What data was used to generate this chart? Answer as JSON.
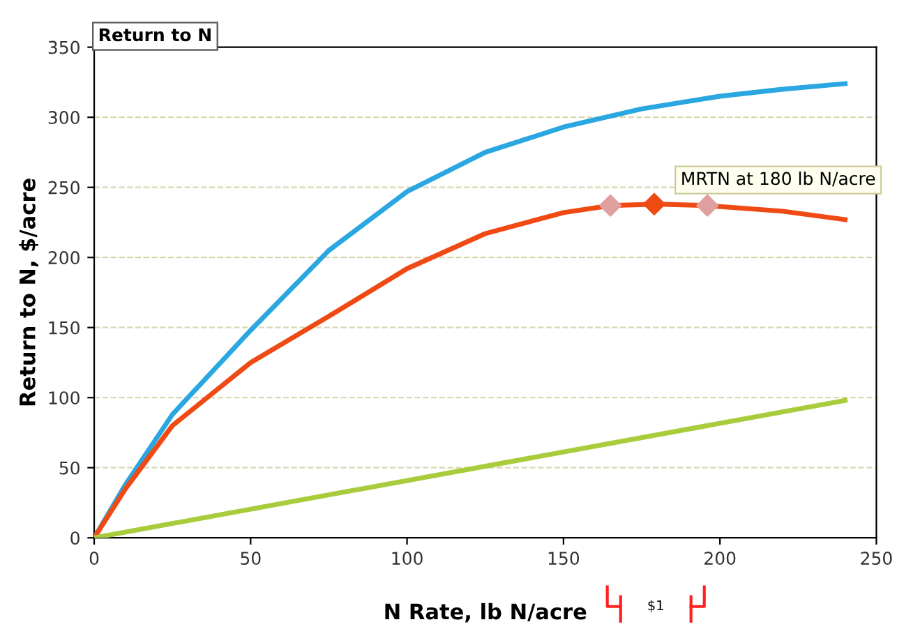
{
  "chart_data": {
    "type": "line",
    "title": "Return to N",
    "xlabel": "N Rate, lb N/acre",
    "ylabel": "Return to N, $/acre",
    "xlim": [
      0,
      250
    ],
    "xticks": [
      0,
      50,
      100,
      150,
      200,
      250
    ],
    "ylim": [
      0,
      350
    ],
    "yticks": [
      0,
      50,
      100,
      150,
      200,
      250,
      300,
      350
    ],
    "grid": "y",
    "legend": false,
    "line_style": "solid",
    "series": [
      {
        "color": "#2aa7e0",
        "x": [
          0,
          10,
          25,
          50,
          75,
          100,
          125,
          150,
          175,
          200,
          220,
          240
        ],
        "values": [
          0,
          38,
          88,
          148,
          205,
          247,
          275,
          293,
          306,
          315,
          320,
          324
        ]
      },
      {
        "color": "#f04a14",
        "x": [
          0,
          10,
          25,
          50,
          75,
          100,
          125,
          150,
          165,
          180,
          196,
          220,
          240
        ],
        "values": [
          0,
          35,
          80,
          125,
          158,
          192,
          217,
          232,
          237,
          238,
          237,
          233,
          227
        ]
      },
      {
        "color": "#a8cc3c",
        "x": [
          0,
          240
        ],
        "values": [
          0,
          98
        ]
      },
      {
        "type": "scatter",
        "marker": "diamond",
        "x": [
          165,
          179,
          196
        ],
        "values": [
          237,
          238,
          237
        ],
        "colors": [
          "#e0a0a0",
          "#f04a14",
          "#e0a0a0"
        ]
      }
    ],
    "annotations": [
      {
        "text": "MRTN at 180 lb N/acre",
        "x": 180,
        "y": 238
      },
      "$1"
    ]
  }
}
